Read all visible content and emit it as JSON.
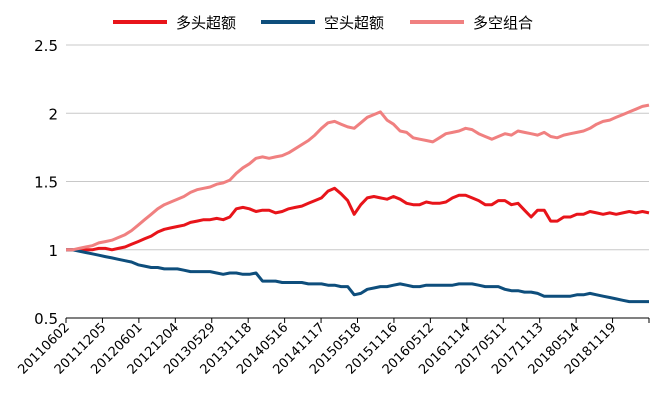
{
  "chart_data": {
    "type": "line",
    "legend_position": "top",
    "grid": "horizontal",
    "ylim": [
      0.5,
      2.5
    ],
    "yticks": [
      "0.5",
      "1",
      "1.5",
      "2",
      "2.5"
    ],
    "xticks": [
      "20110602",
      "20111205",
      "20120601",
      "20121204",
      "20130529",
      "20131118",
      "20140516",
      "20141117",
      "20150518",
      "20151116",
      "20160512",
      "20161114",
      "20170511",
      "20171113",
      "20180514",
      "20181119"
    ],
    "series": [
      {
        "name": "多头超额",
        "color": "#e8141a",
        "values": [
          1.0,
          1.0,
          1.0,
          1.0,
          1.0,
          1.01,
          1.01,
          1.0,
          1.01,
          1.02,
          1.04,
          1.06,
          1.08,
          1.1,
          1.13,
          1.15,
          1.16,
          1.17,
          1.18,
          1.2,
          1.21,
          1.22,
          1.22,
          1.23,
          1.22,
          1.24,
          1.3,
          1.31,
          1.3,
          1.28,
          1.29,
          1.29,
          1.27,
          1.28,
          1.3,
          1.31,
          1.32,
          1.34,
          1.36,
          1.38,
          1.43,
          1.45,
          1.41,
          1.36,
          1.26,
          1.33,
          1.38,
          1.39,
          1.38,
          1.37,
          1.39,
          1.37,
          1.34,
          1.33,
          1.33,
          1.35,
          1.34,
          1.34,
          1.35,
          1.38,
          1.4,
          1.4,
          1.38,
          1.36,
          1.33,
          1.33,
          1.36,
          1.36,
          1.33,
          1.34,
          1.29,
          1.24,
          1.29,
          1.29,
          1.21,
          1.21,
          1.24,
          1.24,
          1.26,
          1.26,
          1.28,
          1.27,
          1.26,
          1.27,
          1.26,
          1.27,
          1.28,
          1.27,
          1.28,
          1.27
        ]
      },
      {
        "name": "空头超额",
        "color": "#0e4e7c",
        "values": [
          1.0,
          1.0,
          0.99,
          0.98,
          0.97,
          0.96,
          0.95,
          0.94,
          0.93,
          0.92,
          0.91,
          0.89,
          0.88,
          0.87,
          0.87,
          0.86,
          0.86,
          0.86,
          0.85,
          0.84,
          0.84,
          0.84,
          0.84,
          0.83,
          0.82,
          0.83,
          0.83,
          0.82,
          0.82,
          0.83,
          0.77,
          0.77,
          0.77,
          0.76,
          0.76,
          0.76,
          0.76,
          0.75,
          0.75,
          0.75,
          0.74,
          0.74,
          0.73,
          0.73,
          0.67,
          0.68,
          0.71,
          0.72,
          0.73,
          0.73,
          0.74,
          0.75,
          0.74,
          0.73,
          0.73,
          0.74,
          0.74,
          0.74,
          0.74,
          0.74,
          0.75,
          0.75,
          0.75,
          0.74,
          0.73,
          0.73,
          0.73,
          0.71,
          0.7,
          0.7,
          0.69,
          0.69,
          0.68,
          0.66,
          0.66,
          0.66,
          0.66,
          0.66,
          0.67,
          0.67,
          0.68,
          0.67,
          0.66,
          0.65,
          0.64,
          0.63,
          0.62,
          0.62,
          0.62,
          0.62
        ]
      },
      {
        "name": "多空组合",
        "color": "#f08080",
        "values": [
          1.0,
          1.0,
          1.01,
          1.02,
          1.03,
          1.05,
          1.06,
          1.07,
          1.09,
          1.11,
          1.14,
          1.18,
          1.22,
          1.26,
          1.3,
          1.33,
          1.35,
          1.37,
          1.39,
          1.42,
          1.44,
          1.45,
          1.46,
          1.48,
          1.49,
          1.51,
          1.56,
          1.6,
          1.63,
          1.67,
          1.68,
          1.67,
          1.68,
          1.69,
          1.71,
          1.74,
          1.77,
          1.8,
          1.84,
          1.89,
          1.93,
          1.94,
          1.92,
          1.9,
          1.89,
          1.93,
          1.97,
          1.99,
          2.01,
          1.95,
          1.92,
          1.87,
          1.86,
          1.82,
          1.81,
          1.8,
          1.79,
          1.82,
          1.85,
          1.86,
          1.87,
          1.89,
          1.88,
          1.85,
          1.83,
          1.81,
          1.83,
          1.85,
          1.84,
          1.87,
          1.86,
          1.85,
          1.84,
          1.86,
          1.83,
          1.82,
          1.84,
          1.85,
          1.86,
          1.87,
          1.89,
          1.92,
          1.94,
          1.95,
          1.97,
          1.99,
          2.01,
          2.03,
          2.05,
          2.06
        ]
      }
    ]
  }
}
